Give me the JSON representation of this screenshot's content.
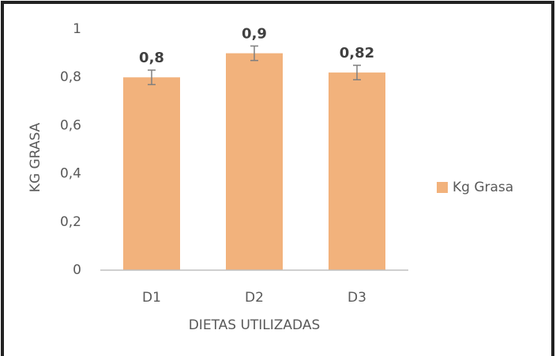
{
  "chart_data": {
    "type": "bar",
    "categories": [
      "D1",
      "D2",
      "D3"
    ],
    "series": [
      {
        "name": "Kg Grasa",
        "color": "#f2b27c",
        "values": [
          0.8,
          0.9,
          0.82
        ],
        "value_labels": [
          "0,8",
          "0,9",
          "0,82"
        ],
        "errors": [
          0.03,
          0.03,
          0.03
        ]
      }
    ],
    "ylim": [
      0,
      1
    ],
    "yticks": [
      0,
      {
        "value": 0.2,
        "label": "0,2"
      },
      {
        "value": 0.4,
        "label": "0,4"
      },
      {
        "value": 0.6,
        "label": "0,6"
      },
      {
        "value": 0.8,
        "label": "0,8"
      },
      1
    ],
    "xlabel": "DIETAS UTILIZADAS",
    "ylabel": "KG GRASA",
    "grid": false,
    "legend": "right"
  }
}
